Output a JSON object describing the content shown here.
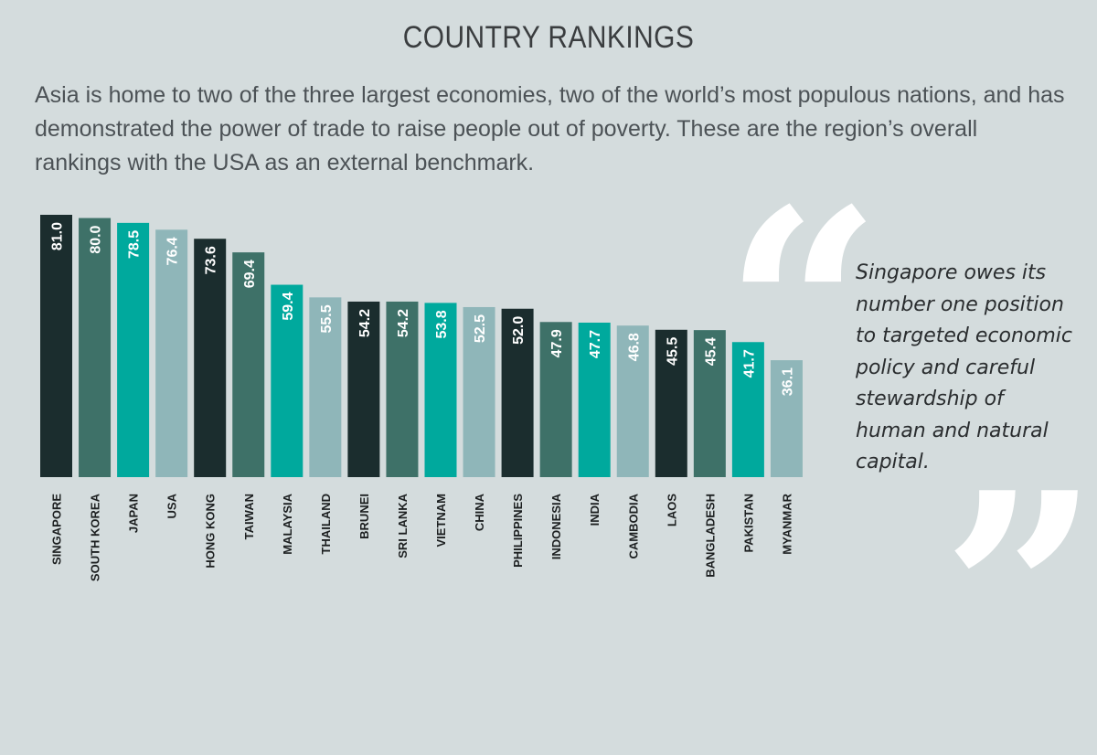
{
  "header": {
    "title": "COUNTRY RANKINGS",
    "intro": "Asia is home to two of the three largest economies, two of the world’s most populous nations, and has demonstrated the power of trade to raise people out of poverty. These are the region’s overall rankings with the USA as an external benchmark."
  },
  "quote": {
    "text": "Singapore owes its number one position to targeted economic policy and careful stewardship of human and natural capital.",
    "open_mark": "“",
    "close_mark": "”"
  },
  "colors": {
    "background": "#d4dcdd",
    "bar_cycle": [
      "#1b2d2e",
      "#3e7168",
      "#00a99d",
      "#8fb6b9"
    ]
  },
  "chart_data": {
    "type": "bar",
    "title": "COUNTRY RANKINGS",
    "xlabel": "",
    "ylabel": "",
    "ylim": [
      0,
      81
    ],
    "grid": false,
    "categories": [
      "SINGAPORE",
      "SOUTH KOREA",
      "JAPAN",
      "USA",
      "HONG KONG",
      "TAIWAN",
      "MALAYSIA",
      "THAILAND",
      "BRUNEI",
      "SRI LANKA",
      "VIETNAM",
      "CHINA",
      "PHILIPPINES",
      "INDONESIA",
      "INDIA",
      "CAMBODIA",
      "LAOS",
      "BANGLADESH",
      "PAKISTAN",
      "MYANMAR"
    ],
    "values": [
      81.0,
      80.0,
      78.5,
      76.4,
      73.6,
      69.4,
      59.4,
      55.5,
      54.2,
      54.2,
      53.8,
      52.5,
      52.0,
      47.9,
      47.7,
      46.8,
      45.5,
      45.4,
      41.7,
      36.1
    ],
    "labels": [
      "81.0",
      "80.0",
      "78.5",
      "76.4",
      "73.6",
      "69.4",
      "59.4",
      "55.5",
      "54.2",
      "54.2",
      "53.8",
      "52.5",
      "52.0",
      "47.9",
      "47.7",
      "46.8",
      "45.5",
      "45.4",
      "41.7",
      "36.1"
    ]
  }
}
